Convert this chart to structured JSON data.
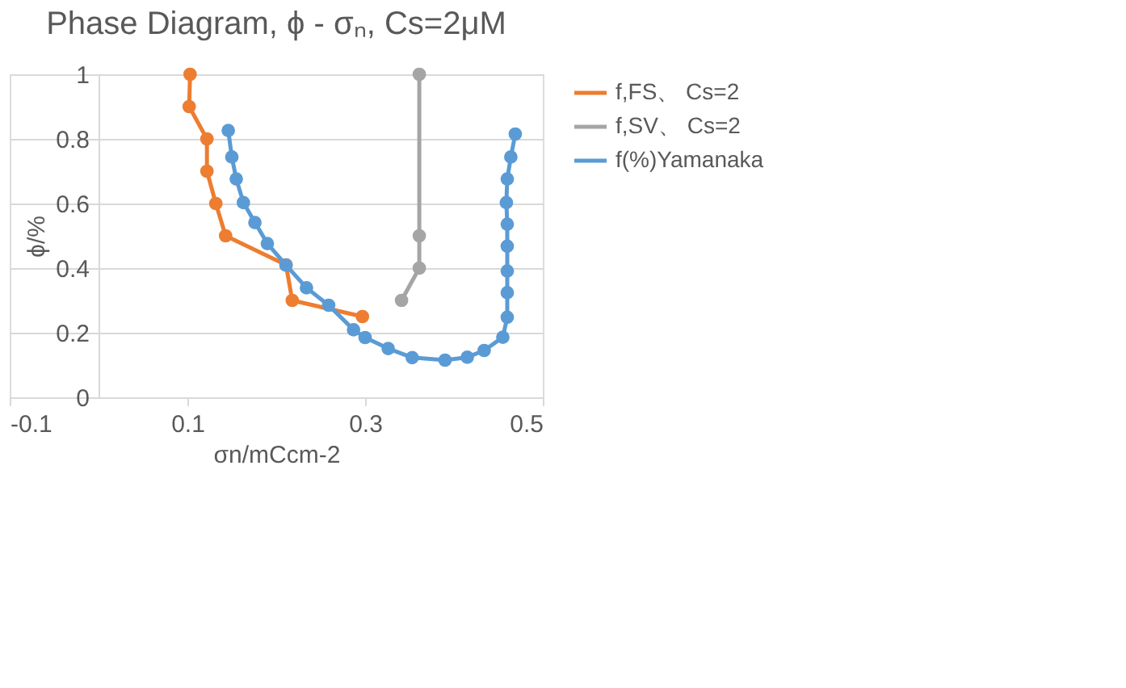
{
  "chart_data": {
    "type": "line",
    "title": "Phase Diagram, ϕ - σₙ, Cs=2μM",
    "xlabel": "σn/mCcm-2",
    "ylabel": "ϕ/%",
    "xlim": [
      -0.1,
      0.5
    ],
    "xticks": [
      -0.1,
      0.1,
      0.3,
      0.5
    ],
    "ylim": [
      0,
      1
    ],
    "yticks": [
      0,
      0.2,
      0.4,
      0.6,
      0.8,
      1
    ],
    "grid": "y",
    "legend": "right",
    "marker": "circle",
    "line_style": "solid",
    "series": [
      {
        "name": "f,FS、 Cs=2",
        "color": "#ed7d31",
        "x": [
          0.103,
          0.102,
          0.122,
          0.122,
          0.132,
          0.143,
          0.211,
          0.218,
          0.297
        ],
        "values": [
          1.0,
          0.9,
          0.8,
          0.7,
          0.6,
          0.5,
          0.41,
          0.3,
          0.25
        ]
      },
      {
        "name": "f,SV、 Cs=2",
        "color": "#a5a5a5",
        "x": [
          0.341,
          0.361,
          0.361,
          0.361
        ],
        "values": [
          0.3,
          0.4,
          0.5,
          1.0
        ]
      },
      {
        "name": "f(%)Yamanaka",
        "color": "#5b9bd5",
        "x": [
          0.146,
          0.15,
          0.155,
          0.163,
          0.176,
          0.19,
          0.211,
          0.234,
          0.259,
          0.287,
          0.3,
          0.326,
          0.353,
          0.39,
          0.415,
          0.434,
          0.455,
          0.46,
          0.46,
          0.46,
          0.46,
          0.46,
          0.459,
          0.46,
          0.464,
          0.469
        ],
        "values": [
          0.826,
          0.744,
          0.676,
          0.603,
          0.541,
          0.476,
          0.409,
          0.339,
          0.285,
          0.209,
          0.185,
          0.151,
          0.123,
          0.115,
          0.124,
          0.145,
          0.186,
          0.248,
          0.324,
          0.391,
          0.468,
          0.536,
          0.603,
          0.676,
          0.744,
          0.815
        ]
      }
    ]
  }
}
